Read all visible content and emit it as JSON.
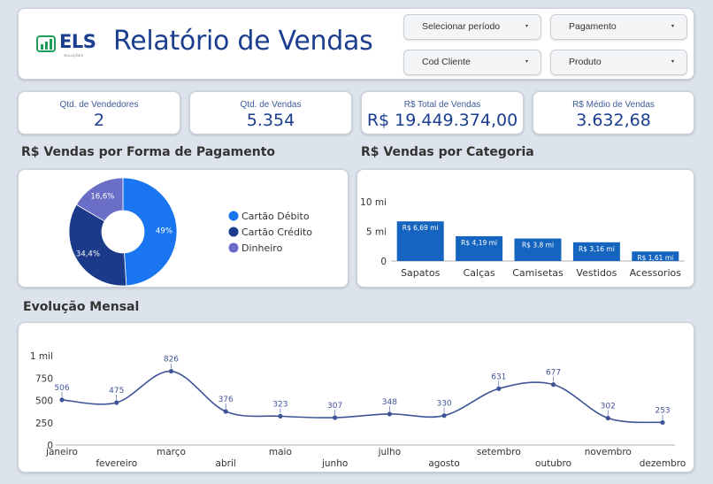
{
  "header": {
    "logo_name": "ELS",
    "logo_sub": "SOLUÇÕES",
    "title": "Relatório de Vendas",
    "filters": [
      {
        "label": "Selecionar período",
        "icon": "caret-down-icon"
      },
      {
        "label": "Pagamento",
        "icon": "caret-down-icon"
      },
      {
        "label": "Cod Cliente",
        "icon": "caret-down-icon"
      },
      {
        "label": "Produto",
        "icon": "caret-down-icon"
      }
    ],
    "caret": "▾"
  },
  "kpis": [
    {
      "label": "Qtd. de Vendedores",
      "value": "2"
    },
    {
      "label": "Qtd. de Vendas",
      "value": "5.354"
    },
    {
      "label": "R$ Total de Vendas",
      "value": "R$ 19.449.374,00"
    },
    {
      "label": "R$ Médio de Vendas",
      "value": "3.632,68"
    }
  ],
  "sections": {
    "payment_title": "R$ Vendas por Forma de Pagamento",
    "category_title": "R$ Vendas por Categoria",
    "monthly_title": "Evolução Mensal"
  },
  "colors": {
    "accent": "#1b3e8f",
    "debit": "#1976f0",
    "credit": "#1b3a8a",
    "cash": "#6a6ec6",
    "bar": "#1565c0",
    "line": "#3e5497"
  },
  "chart_data": [
    {
      "type": "pie",
      "title": "R$ Vendas por Forma de Pagamento",
      "donut": true,
      "slices": [
        {
          "name": "Cartão Débito",
          "value": 49,
          "label": "49%"
        },
        {
          "name": "Cartão Crédito",
          "value": 34.4,
          "label": "34,4%"
        },
        {
          "name": "Dinheiro",
          "value": 16.6,
          "label": "16,6%"
        }
      ],
      "legend": "right"
    },
    {
      "type": "bar",
      "title": "R$ Vendas por Categoria",
      "categories": [
        "Sapatos",
        "Calças",
        "Camisetas",
        "Vestidos",
        "Acessorios"
      ],
      "values": [
        6.69,
        4.19,
        3.8,
        3.16,
        1.61
      ],
      "data_labels": [
        "R$ 6,69 mi",
        "R$ 4,19 mi",
        "R$ 3,8 mi",
        "R$ 3,16 mi",
        "R$ 1,61 mi"
      ],
      "yticks": [
        "0",
        "5 mi",
        "10 mi"
      ],
      "ytick_values": [
        0,
        5,
        10
      ],
      "ylim": [
        0,
        10
      ]
    },
    {
      "type": "line",
      "title": "Evolução Mensal",
      "categories": [
        "janeiro",
        "fevereiro",
        "março",
        "abril",
        "maio",
        "junho",
        "julho",
        "agosto",
        "setembro",
        "outubro",
        "novembro",
        "dezembro"
      ],
      "values": [
        506,
        475,
        826,
        376,
        323,
        307,
        348,
        330,
        631,
        677,
        302,
        253
      ],
      "yticks": [
        "0",
        "250",
        "500",
        "750",
        "1 mil"
      ],
      "ytick_values": [
        0,
        250,
        500,
        750,
        1000
      ],
      "ylim": [
        0,
        1000
      ]
    }
  ]
}
